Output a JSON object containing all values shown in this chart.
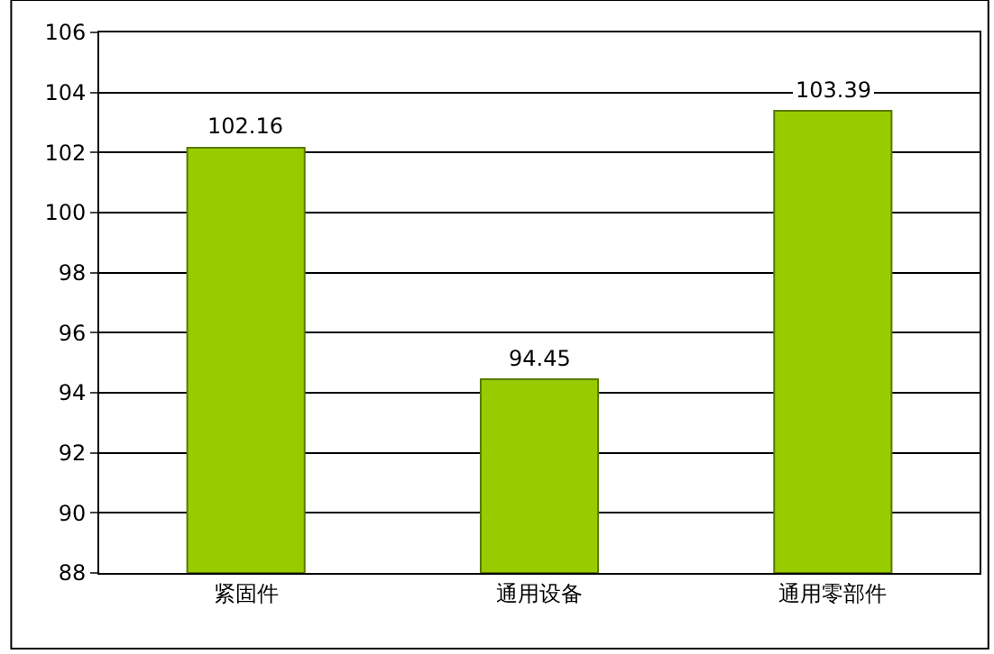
{
  "chart_data": {
    "type": "bar",
    "categories": [
      "紧固件",
      "通用设备",
      "通用零部件"
    ],
    "values": [
      102.16,
      94.45,
      103.39
    ],
    "color": "#99cc00",
    "ylim": [
      88,
      106
    ],
    "yticks": [
      88,
      90,
      92,
      94,
      96,
      98,
      100,
      102,
      104,
      106
    ],
    "grid": "y",
    "data_labels": true
  }
}
